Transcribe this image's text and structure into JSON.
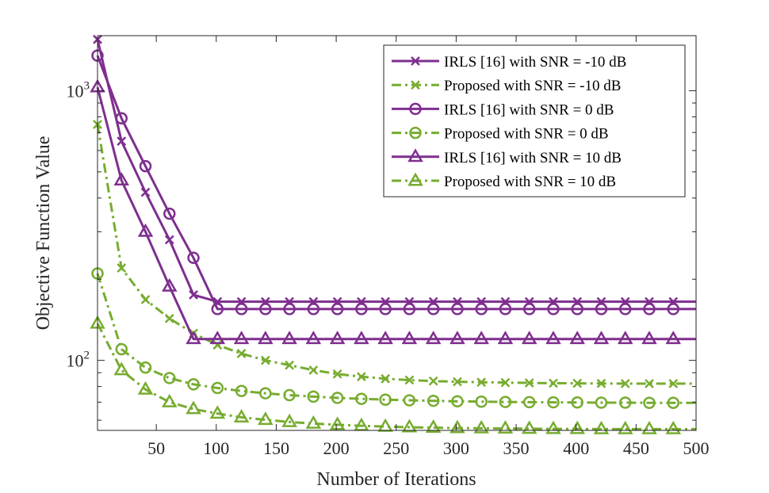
{
  "chart_data": {
    "type": "line",
    "title": "",
    "xlabel": "Number of Iterations",
    "ylabel": "Objective Function Value",
    "xlim": [
      1,
      500
    ],
    "ylim": [
      55,
      1600
    ],
    "yscale": "log",
    "xticks": [
      50,
      100,
      150,
      200,
      250,
      300,
      350,
      400,
      450,
      500
    ],
    "yticks": [
      {
        "value": 100,
        "base": "10",
        "exp": "2"
      },
      {
        "value": 1000,
        "base": "10",
        "exp": "3"
      }
    ],
    "grid": false,
    "legend_position": "top-right",
    "colors": {
      "irls": "#7E2F8E",
      "proposed": "#77AC30"
    },
    "series": [
      {
        "name": "IRLS [16] with SNR = -10 dB",
        "style": "solid",
        "marker": "x",
        "color_key": "irls",
        "x": [
          1,
          21,
          41,
          61,
          81,
          101,
          121,
          141,
          161,
          181,
          201,
          221,
          241,
          261,
          281,
          301,
          321,
          341,
          361,
          381,
          401,
          421,
          441,
          461,
          481,
          500
        ],
        "y": [
          1550,
          650,
          420,
          280,
          175,
          165,
          165,
          165,
          165,
          165,
          165,
          165,
          165,
          165,
          165,
          165,
          165,
          165,
          165,
          165,
          165,
          165,
          165,
          165,
          165,
          165
        ]
      },
      {
        "name": "Proposed with SNR = -10 dB",
        "style": "dashdot",
        "marker": "x",
        "color_key": "proposed",
        "x": [
          1,
          21,
          41,
          61,
          81,
          101,
          121,
          141,
          161,
          181,
          201,
          221,
          241,
          261,
          281,
          301,
          321,
          341,
          361,
          381,
          401,
          421,
          441,
          461,
          481,
          500
        ],
        "y": [
          750,
          220,
          168,
          143,
          126,
          114,
          106,
          100,
          96,
          92,
          89,
          87,
          85.5,
          84.5,
          83.8,
          83.3,
          83,
          82.7,
          82.5,
          82.3,
          82.2,
          82.1,
          82,
          82,
          82,
          82
        ]
      },
      {
        "name": "IRLS [16] with SNR = 0 dB",
        "style": "solid",
        "marker": "o",
        "color_key": "irls",
        "x": [
          1,
          21,
          41,
          61,
          81,
          101,
          121,
          141,
          161,
          181,
          201,
          221,
          241,
          261,
          281,
          301,
          321,
          341,
          361,
          381,
          401,
          421,
          441,
          461,
          481,
          500
        ],
        "y": [
          1350,
          790,
          525,
          350,
          240,
          155,
          155,
          155,
          155,
          155,
          155,
          155,
          155,
          155,
          155,
          155,
          155,
          155,
          155,
          155,
          155,
          155,
          155,
          155,
          155,
          155
        ]
      },
      {
        "name": "Proposed with SNR = 0 dB",
        "style": "dashdot",
        "marker": "o",
        "color_key": "proposed",
        "x": [
          1,
          21,
          41,
          61,
          81,
          101,
          121,
          141,
          161,
          181,
          201,
          221,
          241,
          261,
          281,
          301,
          321,
          341,
          361,
          381,
          401,
          421,
          441,
          461,
          481,
          500
        ],
        "y": [
          210,
          110,
          94,
          86,
          81.5,
          79,
          77,
          75.5,
          74.3,
          73.4,
          72.6,
          72,
          71.5,
          71.1,
          70.8,
          70.5,
          70.3,
          70.1,
          70,
          69.9,
          69.8,
          69.7,
          69.7,
          69.6,
          69.6,
          69.6
        ]
      },
      {
        "name": "IRLS [16] with SNR = 10 dB",
        "style": "solid",
        "marker": "^",
        "color_key": "irls",
        "x": [
          1,
          21,
          41,
          61,
          81,
          101,
          121,
          141,
          161,
          181,
          201,
          221,
          241,
          261,
          281,
          301,
          321,
          341,
          361,
          381,
          401,
          421,
          441,
          461,
          481,
          500
        ],
        "y": [
          1030,
          465,
          300,
          188,
          120,
          120,
          120,
          120,
          120,
          120,
          120,
          120,
          120,
          120,
          120,
          120,
          120,
          120,
          120,
          120,
          120,
          120,
          120,
          120,
          120,
          120
        ]
      },
      {
        "name": "Proposed with SNR = 10 dB",
        "style": "dashdot",
        "marker": "^",
        "color_key": "proposed",
        "x": [
          1,
          21,
          41,
          61,
          81,
          101,
          121,
          141,
          161,
          181,
          201,
          221,
          241,
          261,
          281,
          301,
          321,
          341,
          361,
          381,
          401,
          421,
          441,
          461,
          481,
          500
        ],
        "y": [
          137,
          92,
          78,
          70,
          66,
          63.5,
          61.5,
          60.2,
          59.1,
          58.3,
          57.7,
          57.2,
          56.8,
          56.5,
          56.3,
          56.1,
          56,
          55.9,
          55.8,
          55.7,
          55.7,
          55.6,
          55.6,
          55.6,
          55.6,
          55.6
        ]
      }
    ]
  }
}
